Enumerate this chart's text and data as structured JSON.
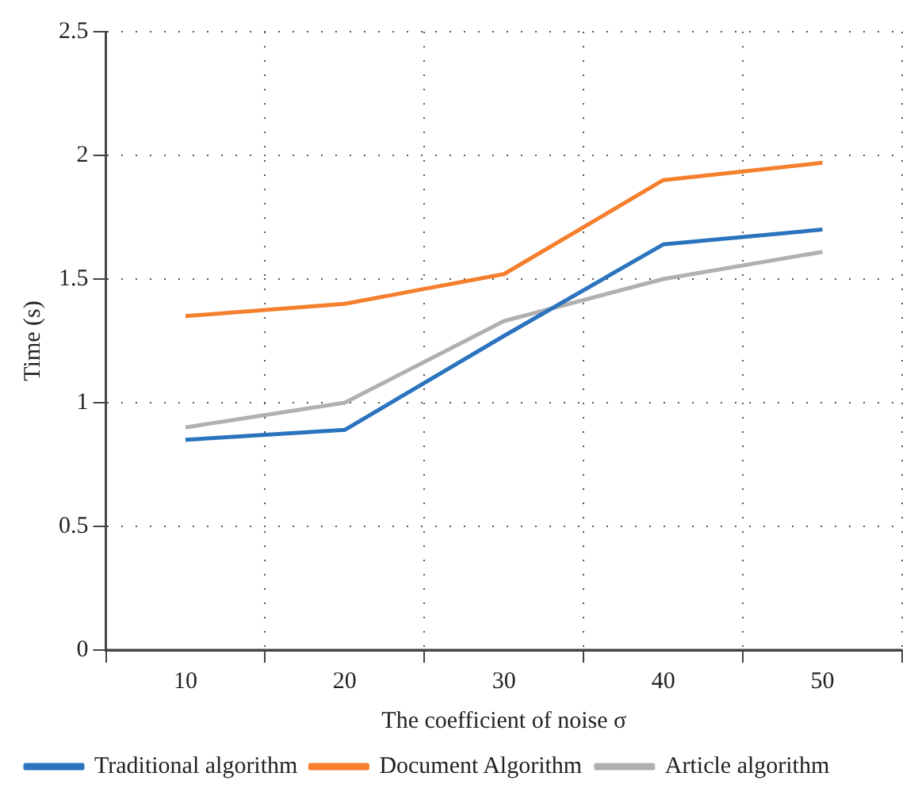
{
  "chart_data": {
    "type": "line",
    "xlabel": "The coefficient of noise σ",
    "ylabel": "Time (s)",
    "categories": [
      "10",
      "20",
      "30",
      "40",
      "50"
    ],
    "series": [
      {
        "name": "Traditional algorithm",
        "color": "#2a73be",
        "values": [
          0.85,
          0.89,
          1.27,
          1.64,
          1.7
        ]
      },
      {
        "name": "Document Algorithm",
        "color": "#f47f2d",
        "values": [
          1.35,
          1.4,
          1.52,
          1.9,
          1.97
        ]
      },
      {
        "name": "Article algorithm",
        "color": "#b0b0b0",
        "values": [
          0.9,
          1.0,
          1.33,
          1.5,
          1.61
        ]
      }
    ],
    "ylim": [
      0,
      2.5
    ],
    "yticks": [
      0,
      0.5,
      1,
      1.5,
      2,
      2.5
    ],
    "grid": true,
    "legend": "bottom",
    "marker": "none",
    "line_style": "solid"
  }
}
